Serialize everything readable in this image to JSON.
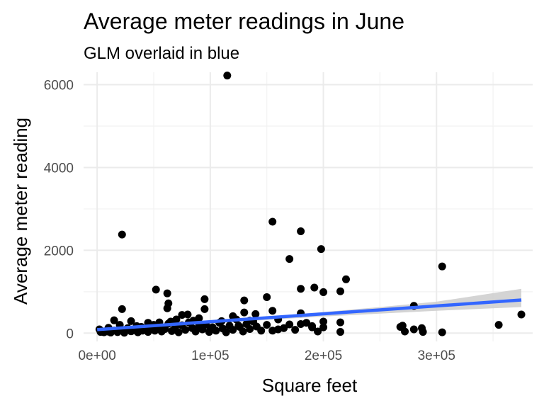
{
  "chart_data": {
    "type": "scatter",
    "title": "Average meter readings in June",
    "subtitle": "GLM overlaid in blue",
    "xlabel": "Square feet",
    "ylabel": "Average meter reading",
    "xlim": [
      -12000,
      385000
    ],
    "ylim": [
      -200,
      6300
    ],
    "x_ticks": [
      0,
      100000,
      200000,
      300000
    ],
    "x_tick_labels": [
      "0e+00",
      "1e+05",
      "2e+05",
      "3e+05"
    ],
    "y_ticks": [
      0,
      2000,
      4000,
      6000
    ],
    "y_tick_labels": [
      "0",
      "2000",
      "4000",
      "6000"
    ],
    "grid": true,
    "point_color": "#000000",
    "fit_color": "#3366ff",
    "band_color": "#cccccc",
    "fit": {
      "type": "glm",
      "points": [
        [
          0,
          85
        ],
        [
          375000,
          800
        ]
      ],
      "band": [
        [
          0,
          30,
          140
        ],
        [
          50000,
          140,
          210
        ],
        [
          100000,
          230,
          300
        ],
        [
          150000,
          320,
          400
        ],
        [
          200000,
          400,
          510
        ],
        [
          250000,
          470,
          630
        ],
        [
          300000,
          540,
          760
        ],
        [
          375000,
          630,
          1070
        ]
      ]
    },
    "points": [
      [
        115000,
        6220
      ],
      [
        155000,
        2690
      ],
      [
        180000,
        2460
      ],
      [
        22000,
        2380
      ],
      [
        198000,
        2030
      ],
      [
        170000,
        1790
      ],
      [
        305000,
        1610
      ],
      [
        220000,
        1300
      ],
      [
        192000,
        1100
      ],
      [
        52000,
        1050
      ],
      [
        62000,
        960
      ],
      [
        180000,
        1070
      ],
      [
        200000,
        990
      ],
      [
        215000,
        1010
      ],
      [
        150000,
        870
      ],
      [
        95000,
        820
      ],
      [
        130000,
        790
      ],
      [
        63000,
        720
      ],
      [
        280000,
        660
      ],
      [
        22000,
        580
      ],
      [
        62000,
        600
      ],
      [
        95000,
        580
      ],
      [
        155000,
        540
      ],
      [
        130000,
        500
      ],
      [
        75000,
        440
      ],
      [
        80000,
        450
      ],
      [
        140000,
        460
      ],
      [
        120000,
        410
      ],
      [
        180000,
        480
      ],
      [
        15000,
        310
      ],
      [
        30000,
        290
      ],
      [
        45000,
        250
      ],
      [
        55000,
        260
      ],
      [
        65000,
        280
      ],
      [
        85000,
        300
      ],
      [
        110000,
        290
      ],
      [
        135000,
        300
      ],
      [
        160000,
        330
      ],
      [
        200000,
        280
      ],
      [
        215000,
        260
      ],
      [
        3000,
        30
      ],
      [
        6000,
        20
      ],
      [
        9000,
        40
      ],
      [
        12000,
        15
      ],
      [
        15000,
        60
      ],
      [
        18000,
        25
      ],
      [
        21000,
        80
      ],
      [
        24000,
        10
      ],
      [
        27000,
        120
      ],
      [
        30000,
        45
      ],
      [
        33000,
        70
      ],
      [
        36000,
        20
      ],
      [
        39000,
        150
      ],
      [
        42000,
        90
      ],
      [
        45000,
        30
      ],
      [
        48000,
        110
      ],
      [
        51000,
        60
      ],
      [
        54000,
        180
      ],
      [
        57000,
        40
      ],
      [
        60000,
        100
      ],
      [
        63000,
        230
      ],
      [
        66000,
        50
      ],
      [
        69000,
        140
      ],
      [
        72000,
        20
      ],
      [
        75000,
        190
      ],
      [
        78000,
        80
      ],
      [
        81000,
        260
      ],
      [
        84000,
        120
      ],
      [
        87000,
        40
      ],
      [
        90000,
        170
      ],
      [
        93000,
        90
      ],
      [
        96000,
        210
      ],
      [
        99000,
        30
      ],
      [
        102000,
        140
      ],
      [
        105000,
        60
      ],
      [
        108000,
        250
      ],
      [
        111000,
        110
      ],
      [
        114000,
        20
      ],
      [
        117000,
        180
      ],
      [
        120000,
        80
      ],
      [
        123000,
        330
      ],
      [
        126000,
        150
      ],
      [
        129000,
        40
      ],
      [
        132000,
        220
      ],
      [
        135000,
        100
      ],
      [
        138000,
        280
      ],
      [
        141000,
        160
      ],
      [
        150000,
        200
      ],
      [
        155000,
        60
      ],
      [
        165000,
        120
      ],
      [
        170000,
        210
      ],
      [
        175000,
        80
      ],
      [
        185000,
        250
      ],
      [
        190000,
        170
      ],
      [
        195000,
        40
      ],
      [
        200000,
        140
      ],
      [
        215000,
        30
      ],
      [
        268000,
        150
      ],
      [
        272000,
        40
      ],
      [
        270000,
        180
      ],
      [
        280000,
        90
      ],
      [
        287000,
        120
      ],
      [
        288000,
        30
      ],
      [
        305000,
        20
      ],
      [
        355000,
        200
      ],
      [
        375000,
        450
      ],
      [
        2000,
        90
      ],
      [
        10000,
        130
      ],
      [
        20000,
        200
      ],
      [
        35000,
        170
      ],
      [
        40000,
        60
      ],
      [
        50000,
        200
      ],
      [
        70000,
        330
      ],
      [
        90000,
        360
      ],
      [
        100000,
        120
      ],
      [
        125000,
        180
      ],
      [
        145000,
        60
      ],
      [
        160000,
        90
      ],
      [
        180000,
        220
      ],
      [
        190000,
        140
      ]
    ]
  }
}
